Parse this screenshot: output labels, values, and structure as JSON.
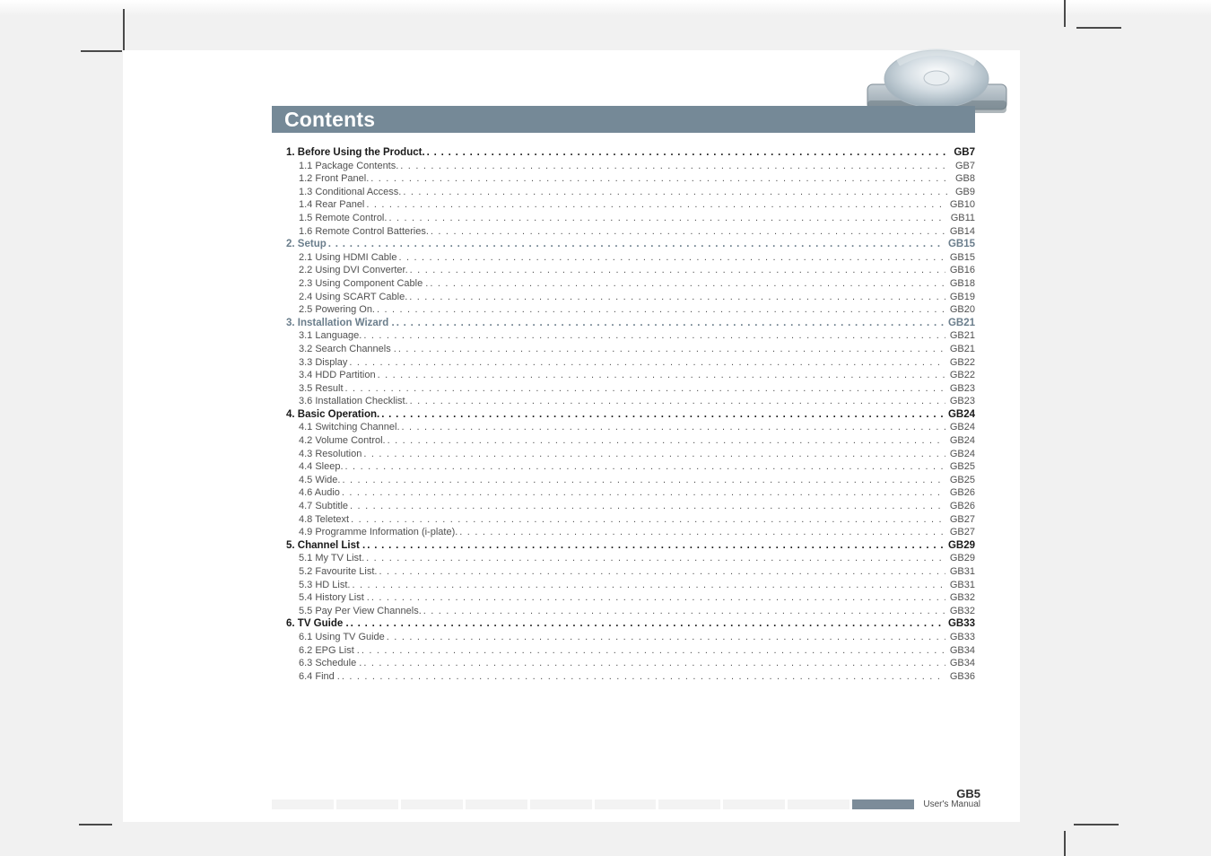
{
  "title": "Contents",
  "footer": {
    "line1": "GB5",
    "line2": "User's Manual"
  },
  "colors": {
    "titlebar_bg": "#758997",
    "titlebar_text": "#ffffff",
    "section_text": "#1a1a1a",
    "section_alt_text": "#6b7e8c",
    "body_text": "#505050",
    "page_bg": "#ffffff",
    "outer_bg": "#f1f1f1"
  },
  "toc": [
    {
      "type": "section",
      "num": "1.",
      "label": "Before Using the Product.",
      "page": "GB7",
      "alt": false
    },
    {
      "type": "sub",
      "label": "1.1 Package Contents.",
      "page": "GB7"
    },
    {
      "type": "sub",
      "label": "1.2 Front Panel.",
      "page": "GB8"
    },
    {
      "type": "sub",
      "label": "1.3 Conditional Access.",
      "page": "GB9"
    },
    {
      "type": "sub",
      "label": "1.4 Rear Panel",
      "page": "GB10"
    },
    {
      "type": "sub",
      "label": "1.5 Remote Control.",
      "page": "GB11"
    },
    {
      "type": "sub",
      "label": "1.6 Remote Control Batteries.",
      "page": "GB14"
    },
    {
      "type": "section",
      "num": "2.",
      "label": "Setup",
      "page": "GB15",
      "alt": true
    },
    {
      "type": "sub",
      "label": "2.1 Using HDMI Cable",
      "page": "GB15"
    },
    {
      "type": "sub",
      "label": "2.2 Using DVI Converter.",
      "page": "GB16"
    },
    {
      "type": "sub",
      "label": "2.3 Using Component Cable .",
      "page": "GB18"
    },
    {
      "type": "sub",
      "label": "2.4 Using SCART Cable.",
      "page": "GB19"
    },
    {
      "type": "sub",
      "label": "2.5 Powering On.",
      "page": "GB20"
    },
    {
      "type": "section",
      "num": "3.",
      "label": "Installation Wizard .",
      "page": "GB21",
      "alt": true
    },
    {
      "type": "sub",
      "label": "3.1 Language.",
      "page": "GB21"
    },
    {
      "type": "sub",
      "label": "3.2 Search Channels .",
      "page": "GB21"
    },
    {
      "type": "sub",
      "label": "3.3 Display",
      "page": "GB22"
    },
    {
      "type": "sub",
      "label": "3.4 HDD Partition",
      "page": "GB22"
    },
    {
      "type": "sub",
      "label": "3.5 Result",
      "page": "GB23"
    },
    {
      "type": "sub",
      "label": "3.6 Installation Checklist.",
      "page": "GB23"
    },
    {
      "type": "section",
      "num": "4.",
      "label": "Basic Operation.",
      "page": "GB24",
      "alt": false
    },
    {
      "type": "sub",
      "label": "4.1 Switching Channel.",
      "page": "GB24"
    },
    {
      "type": "sub",
      "label": "4.2 Volume Control.",
      "page": "GB24"
    },
    {
      "type": "sub",
      "label": "4.3 Resolution",
      "page": "GB24"
    },
    {
      "type": "sub",
      "label": "4.4 Sleep.",
      "page": "GB25"
    },
    {
      "type": "sub",
      "label": "4.5 Wide.",
      "page": "GB25"
    },
    {
      "type": "sub",
      "label": "4.6 Audio",
      "page": "GB26"
    },
    {
      "type": "sub",
      "label": "4.7 Subtitle",
      "page": "GB26"
    },
    {
      "type": "sub",
      "label": "4.8 Teletext",
      "page": "GB27"
    },
    {
      "type": "sub",
      "label": "4.9 Programme Information (i-plate).",
      "page": "GB27"
    },
    {
      "type": "section",
      "num": "5.",
      "label": "Channel List .",
      "page": "GB29",
      "alt": false
    },
    {
      "type": "sub",
      "label": "5.1 My TV List.",
      "page": "GB29"
    },
    {
      "type": "sub",
      "label": "5.2 Favourite List.",
      "page": "GB31"
    },
    {
      "type": "sub",
      "label": "5.3 HD List.",
      "page": "GB31"
    },
    {
      "type": "sub",
      "label": "5.4 History List .",
      "page": "GB32"
    },
    {
      "type": "sub",
      "label": "5.5 Pay Per View Channels.",
      "page": "GB32"
    },
    {
      "type": "section",
      "num": "6.",
      "label": "TV Guide .",
      "page": "GB33",
      "alt": false
    },
    {
      "type": "sub",
      "label": "6.1 Using TV Guide",
      "page": "GB33"
    },
    {
      "type": "sub",
      "label": "6.2 EPG List .",
      "page": "GB34"
    },
    {
      "type": "sub",
      "label": "6.3 Schedule .",
      "page": "GB34"
    },
    {
      "type": "sub",
      "label": "6.4 Find .",
      "page": "GB36"
    }
  ]
}
